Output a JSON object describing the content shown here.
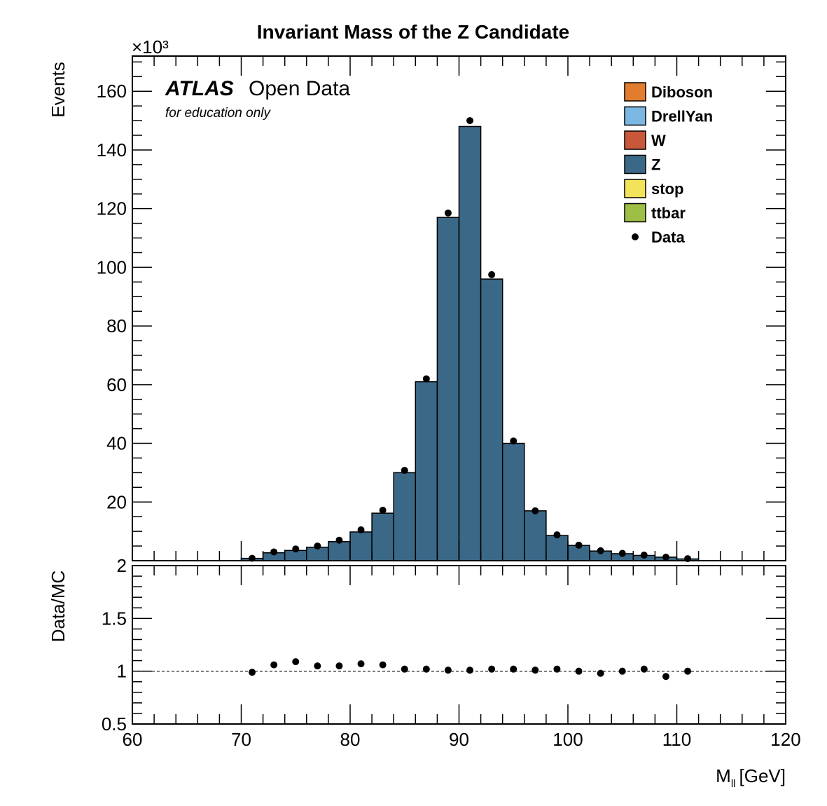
{
  "chart_data": [
    {
      "type": "bar",
      "title": "Invariant Mass of the Z Candidate",
      "ylabel": "Events",
      "y_scale_label": "×10³",
      "xlim": [
        60,
        120
      ],
      "ylim": [
        0,
        172
      ],
      "y_ticks": [
        0,
        20,
        40,
        60,
        80,
        100,
        120,
        140,
        160
      ],
      "y_ticks_labels": [
        "",
        "20",
        "40",
        "60",
        "80",
        "100",
        "120",
        "140",
        "160"
      ],
      "bin_width": 2,
      "bin_centers": [
        71,
        73,
        75,
        77,
        79,
        81,
        83,
        85,
        87,
        89,
        91,
        93,
        95,
        97,
        99,
        101,
        103,
        105,
        107,
        109,
        111
      ],
      "series": [
        {
          "name": "Z",
          "kind": "stacked-histogram",
          "color": "#3b6887",
          "values": [
            0.8,
            2.7,
            3.5,
            4.6,
            6.5,
            9.8,
            16.2,
            30.0,
            61.0,
            117.0,
            148.0,
            96.0,
            40.0,
            17.0,
            8.6,
            5.2,
            3.3,
            2.4,
            1.8,
            1.2,
            0.6
          ]
        },
        {
          "name": "Data",
          "kind": "points",
          "values": [
            0.8,
            3.0,
            4.0,
            5.0,
            7.0,
            10.5,
            17.2,
            30.8,
            62.0,
            118.5,
            150.0,
            97.5,
            40.8,
            17.0,
            8.8,
            5.3,
            3.4,
            2.5,
            1.9,
            1.2,
            0.7
          ]
        }
      ],
      "legend": {
        "position": "top-right",
        "entries": [
          {
            "name": "Diboson",
            "color": "#e37d2e",
            "marker": "box"
          },
          {
            "name": "DrellYan",
            "color": "#7ab8e3",
            "marker": "box"
          },
          {
            "name": "W",
            "color": "#c9583a",
            "marker": "box"
          },
          {
            "name": "Z",
            "color": "#3b6887",
            "marker": "box"
          },
          {
            "name": "stop",
            "color": "#f2e35a",
            "marker": "box"
          },
          {
            "name": "ttbar",
            "color": "#9ebf45",
            "marker": "box"
          },
          {
            "name": "Data",
            "color": "#000000",
            "marker": "dot"
          }
        ]
      },
      "annotations": {
        "atlas": "ATLAS",
        "open_data": "Open Data",
        "note": "for education only"
      }
    },
    {
      "type": "scatter",
      "ylabel": "Data/MC",
      "xlabel": "M",
      "xlabel_sub": "ll",
      "xlabel_unit": "[GeV]",
      "xlim": [
        60,
        120
      ],
      "ylim": [
        0.5,
        2
      ],
      "x_ticks": [
        60,
        70,
        80,
        90,
        100,
        110,
        120
      ],
      "y_ticks": [
        0.5,
        1,
        1.5,
        2
      ],
      "y_ticks_labels": [
        "0.5",
        "1",
        "1.5",
        "2"
      ],
      "reference_line": 1,
      "x": [
        71,
        73,
        75,
        77,
        79,
        81,
        83,
        85,
        87,
        89,
        91,
        93,
        95,
        97,
        99,
        101,
        103,
        105,
        107,
        109,
        111
      ],
      "values": [
        0.99,
        1.06,
        1.09,
        1.05,
        1.05,
        1.07,
        1.06,
        1.02,
        1.02,
        1.01,
        1.01,
        1.02,
        1.02,
        1.01,
        1.02,
        1.0,
        0.98,
        1.0,
        1.02,
        0.95,
        1.0
      ]
    }
  ]
}
